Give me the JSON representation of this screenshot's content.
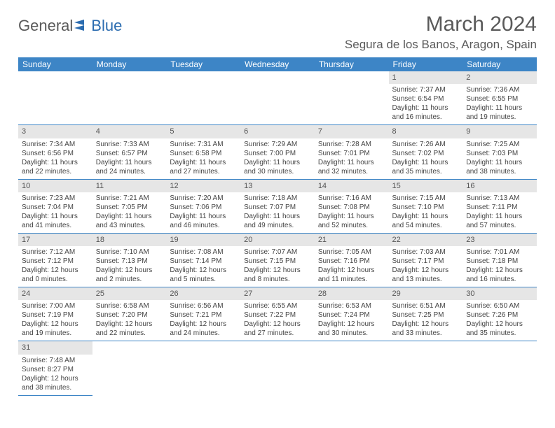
{
  "logo": {
    "text1": "General",
    "text2": "Blue"
  },
  "title": "March 2024",
  "location": "Segura de los Banos, Aragon, Spain",
  "colors": {
    "header_bg": "#3d85c6",
    "header_text": "#ffffff",
    "daynum_bg": "#e6e6e6",
    "border": "#3d85c6",
    "text": "#444444",
    "title_text": "#5a5a5a"
  },
  "week_headers": [
    "Sunday",
    "Monday",
    "Tuesday",
    "Wednesday",
    "Thursday",
    "Friday",
    "Saturday"
  ],
  "weeks": [
    [
      null,
      null,
      null,
      null,
      null,
      {
        "n": "1",
        "sr": "Sunrise: 7:37 AM",
        "ss": "Sunset: 6:54 PM",
        "dl": "Daylight: 11 hours and 16 minutes."
      },
      {
        "n": "2",
        "sr": "Sunrise: 7:36 AM",
        "ss": "Sunset: 6:55 PM",
        "dl": "Daylight: 11 hours and 19 minutes."
      }
    ],
    [
      {
        "n": "3",
        "sr": "Sunrise: 7:34 AM",
        "ss": "Sunset: 6:56 PM",
        "dl": "Daylight: 11 hours and 22 minutes."
      },
      {
        "n": "4",
        "sr": "Sunrise: 7:33 AM",
        "ss": "Sunset: 6:57 PM",
        "dl": "Daylight: 11 hours and 24 minutes."
      },
      {
        "n": "5",
        "sr": "Sunrise: 7:31 AM",
        "ss": "Sunset: 6:58 PM",
        "dl": "Daylight: 11 hours and 27 minutes."
      },
      {
        "n": "6",
        "sr": "Sunrise: 7:29 AM",
        "ss": "Sunset: 7:00 PM",
        "dl": "Daylight: 11 hours and 30 minutes."
      },
      {
        "n": "7",
        "sr": "Sunrise: 7:28 AM",
        "ss": "Sunset: 7:01 PM",
        "dl": "Daylight: 11 hours and 32 minutes."
      },
      {
        "n": "8",
        "sr": "Sunrise: 7:26 AM",
        "ss": "Sunset: 7:02 PM",
        "dl": "Daylight: 11 hours and 35 minutes."
      },
      {
        "n": "9",
        "sr": "Sunrise: 7:25 AM",
        "ss": "Sunset: 7:03 PM",
        "dl": "Daylight: 11 hours and 38 minutes."
      }
    ],
    [
      {
        "n": "10",
        "sr": "Sunrise: 7:23 AM",
        "ss": "Sunset: 7:04 PM",
        "dl": "Daylight: 11 hours and 41 minutes."
      },
      {
        "n": "11",
        "sr": "Sunrise: 7:21 AM",
        "ss": "Sunset: 7:05 PM",
        "dl": "Daylight: 11 hours and 43 minutes."
      },
      {
        "n": "12",
        "sr": "Sunrise: 7:20 AM",
        "ss": "Sunset: 7:06 PM",
        "dl": "Daylight: 11 hours and 46 minutes."
      },
      {
        "n": "13",
        "sr": "Sunrise: 7:18 AM",
        "ss": "Sunset: 7:07 PM",
        "dl": "Daylight: 11 hours and 49 minutes."
      },
      {
        "n": "14",
        "sr": "Sunrise: 7:16 AM",
        "ss": "Sunset: 7:08 PM",
        "dl": "Daylight: 11 hours and 52 minutes."
      },
      {
        "n": "15",
        "sr": "Sunrise: 7:15 AM",
        "ss": "Sunset: 7:10 PM",
        "dl": "Daylight: 11 hours and 54 minutes."
      },
      {
        "n": "16",
        "sr": "Sunrise: 7:13 AM",
        "ss": "Sunset: 7:11 PM",
        "dl": "Daylight: 11 hours and 57 minutes."
      }
    ],
    [
      {
        "n": "17",
        "sr": "Sunrise: 7:12 AM",
        "ss": "Sunset: 7:12 PM",
        "dl": "Daylight: 12 hours and 0 minutes."
      },
      {
        "n": "18",
        "sr": "Sunrise: 7:10 AM",
        "ss": "Sunset: 7:13 PM",
        "dl": "Daylight: 12 hours and 2 minutes."
      },
      {
        "n": "19",
        "sr": "Sunrise: 7:08 AM",
        "ss": "Sunset: 7:14 PM",
        "dl": "Daylight: 12 hours and 5 minutes."
      },
      {
        "n": "20",
        "sr": "Sunrise: 7:07 AM",
        "ss": "Sunset: 7:15 PM",
        "dl": "Daylight: 12 hours and 8 minutes."
      },
      {
        "n": "21",
        "sr": "Sunrise: 7:05 AM",
        "ss": "Sunset: 7:16 PM",
        "dl": "Daylight: 12 hours and 11 minutes."
      },
      {
        "n": "22",
        "sr": "Sunrise: 7:03 AM",
        "ss": "Sunset: 7:17 PM",
        "dl": "Daylight: 12 hours and 13 minutes."
      },
      {
        "n": "23",
        "sr": "Sunrise: 7:01 AM",
        "ss": "Sunset: 7:18 PM",
        "dl": "Daylight: 12 hours and 16 minutes."
      }
    ],
    [
      {
        "n": "24",
        "sr": "Sunrise: 7:00 AM",
        "ss": "Sunset: 7:19 PM",
        "dl": "Daylight: 12 hours and 19 minutes."
      },
      {
        "n": "25",
        "sr": "Sunrise: 6:58 AM",
        "ss": "Sunset: 7:20 PM",
        "dl": "Daylight: 12 hours and 22 minutes."
      },
      {
        "n": "26",
        "sr": "Sunrise: 6:56 AM",
        "ss": "Sunset: 7:21 PM",
        "dl": "Daylight: 12 hours and 24 minutes."
      },
      {
        "n": "27",
        "sr": "Sunrise: 6:55 AM",
        "ss": "Sunset: 7:22 PM",
        "dl": "Daylight: 12 hours and 27 minutes."
      },
      {
        "n": "28",
        "sr": "Sunrise: 6:53 AM",
        "ss": "Sunset: 7:24 PM",
        "dl": "Daylight: 12 hours and 30 minutes."
      },
      {
        "n": "29",
        "sr": "Sunrise: 6:51 AM",
        "ss": "Sunset: 7:25 PM",
        "dl": "Daylight: 12 hours and 33 minutes."
      },
      {
        "n": "30",
        "sr": "Sunrise: 6:50 AM",
        "ss": "Sunset: 7:26 PM",
        "dl": "Daylight: 12 hours and 35 minutes."
      }
    ],
    [
      {
        "n": "31",
        "sr": "Sunrise: 7:48 AM",
        "ss": "Sunset: 8:27 PM",
        "dl": "Daylight: 12 hours and 38 minutes."
      },
      null,
      null,
      null,
      null,
      null,
      null
    ]
  ]
}
